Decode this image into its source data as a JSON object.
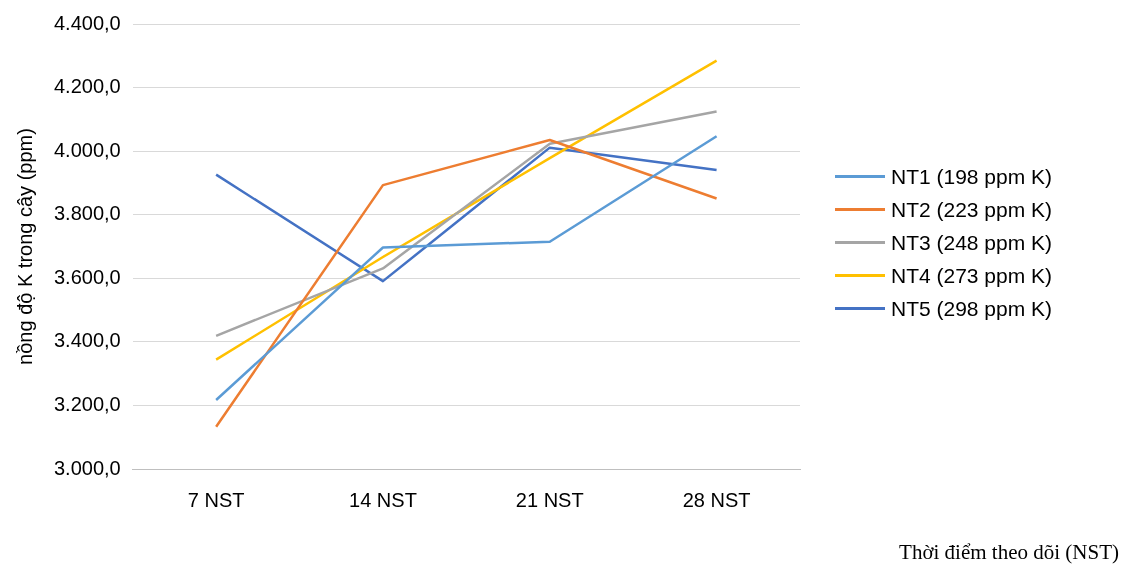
{
  "chart_data": {
    "type": "line",
    "ylabel": "nồng độ K trong cây (ppm)",
    "xlabel": "Thời điểm theo dõi (NST)",
    "categories": [
      "7 NST",
      "14 NST",
      "21 NST",
      "28 NST"
    ],
    "series": [
      {
        "name": "NT1 (198 ppm K)",
        "color": "#5b9bd5",
        "values": [
          3217,
          3697,
          3715,
          4047
        ]
      },
      {
        "name": "NT2 (223 ppm K)",
        "color": "#ed7d31",
        "values": [
          3133,
          3893,
          4035,
          3851
        ]
      },
      {
        "name": "NT3 (248 ppm K)",
        "color": "#a5a5a5",
        "values": [
          3419,
          3631,
          4023,
          4125
        ]
      },
      {
        "name": "NT4 (273 ppm K)",
        "color": "#ffc000",
        "values": [
          3344,
          3667,
          3978,
          4285
        ]
      },
      {
        "name": "NT5 (298 ppm K)",
        "color": "#4472c4",
        "values": [
          3926,
          3591,
          4011,
          3941
        ]
      }
    ],
    "ylim": [
      3000,
      4400
    ],
    "yticks": [
      {
        "value": 3000,
        "label": "3.000,0"
      },
      {
        "value": 3200,
        "label": "3.200,0"
      },
      {
        "value": 3400,
        "label": "3.400,0"
      },
      {
        "value": 3600,
        "label": "3.600,0"
      },
      {
        "value": 3800,
        "label": "3.800,0"
      },
      {
        "value": 4000,
        "label": "4.000,0"
      },
      {
        "value": 4200,
        "label": "4.200,0"
      },
      {
        "value": 4400,
        "label": "4.400,0"
      }
    ],
    "grid": "y",
    "legend": "right",
    "marker": "none",
    "line_style": "solid"
  }
}
